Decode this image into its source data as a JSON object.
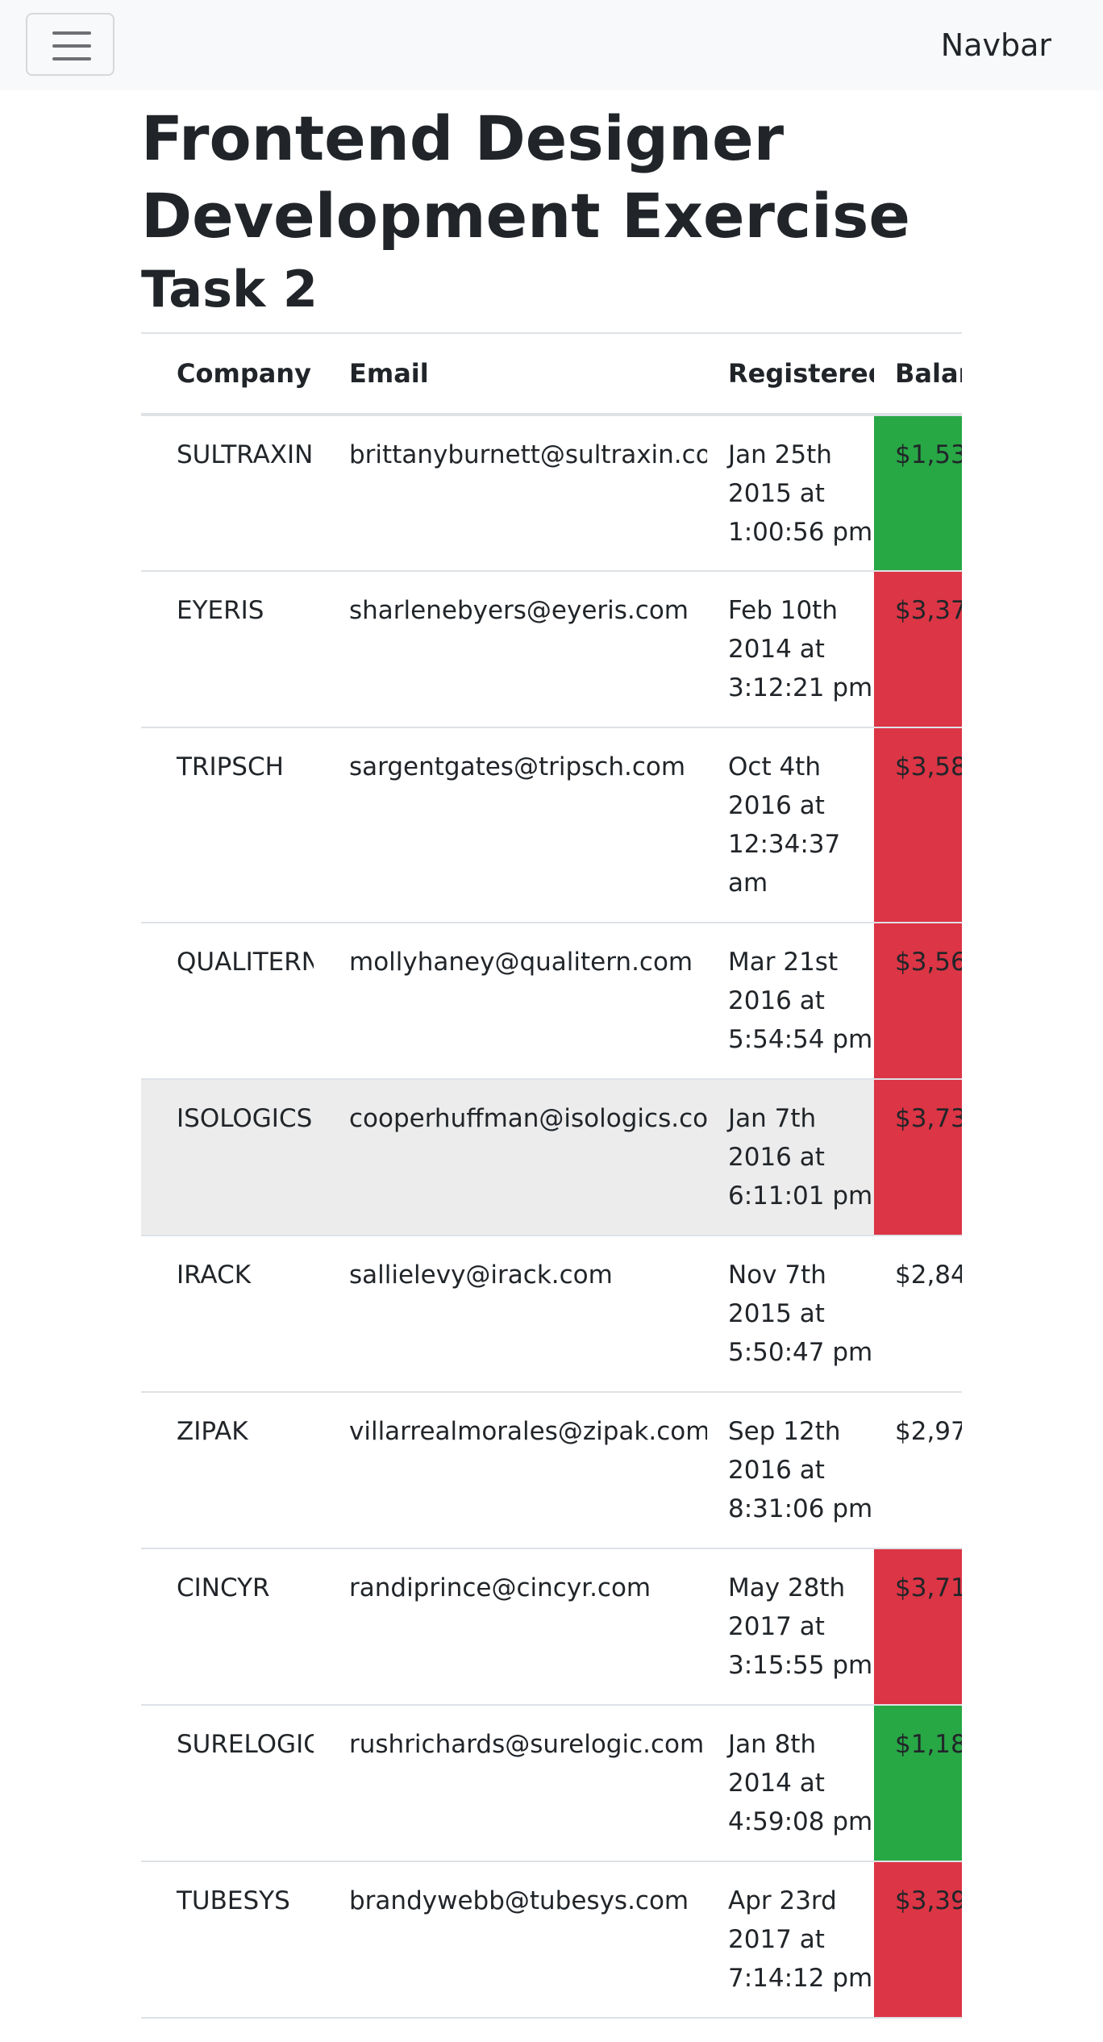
{
  "navbar": {
    "brand": "Navbar",
    "toggler_icon": "hamburger-icon"
  },
  "page": {
    "title_line1": "Frontend Designer",
    "title_line2": "Development Exercise",
    "subtitle": "Task 2"
  },
  "table": {
    "headers": {
      "company": "Company",
      "email": "Email",
      "registered": "Registered",
      "balance": "Balance"
    },
    "rows": [
      {
        "company": "SULTRAXIN",
        "email": "brittanyburnett@sultraxin.com",
        "registered": "Jan 25th 2015 at 1:00:56 pm",
        "balance": "$1,53",
        "status": "ok"
      },
      {
        "company": "EYERIS",
        "email": "sharlenebyers@eyeris.com",
        "registered": "Feb 10th 2014 at 3:12:21 pm",
        "balance": "$3,37",
        "status": "bad"
      },
      {
        "company": "TRIPSCH",
        "email": "sargentgates@tripsch.com",
        "registered": "Oct 4th 2016 at 12:34:37 am",
        "balance": "$3,58",
        "status": "bad"
      },
      {
        "company": "QUALITERN",
        "email": "mollyhaney@qualitern.com",
        "registered": "Mar 21st 2016 at 5:54:54 pm",
        "balance": "$3,56",
        "status": "bad"
      },
      {
        "company": "ISOLOGICS",
        "email": "cooperhuffman@isologics.com",
        "registered": "Jan 7th 2016 at 6:11:01 pm",
        "balance": "$3,73",
        "status": "bad"
      },
      {
        "company": "IRACK",
        "email": "sallielevy@irack.com",
        "registered": "Nov 7th 2015 at 5:50:47 pm",
        "balance": "$2,84",
        "status": "neutral"
      },
      {
        "company": "ZIPAK",
        "email": "villarrealmorales@zipak.com",
        "registered": "Sep 12th 2016 at 8:31:06 pm",
        "balance": "$2,97",
        "status": "neutral"
      },
      {
        "company": "CINCYR",
        "email": "randiprince@cincyr.com",
        "registered": "May 28th 2017 at 3:15:55 pm",
        "balance": "$3,71",
        "status": "bad"
      },
      {
        "company": "SURELOGIC",
        "email": "rushrichards@surelogic.com",
        "registered": "Jan 8th 2014 at 4:59:08 pm",
        "balance": "$1,18",
        "status": "ok"
      },
      {
        "company": "TUBESYS",
        "email": "brandywebb@tubesys.com",
        "registered": "Apr 23rd 2017 at 7:14:12 pm",
        "balance": "$3,39",
        "status": "bad"
      }
    ]
  }
}
